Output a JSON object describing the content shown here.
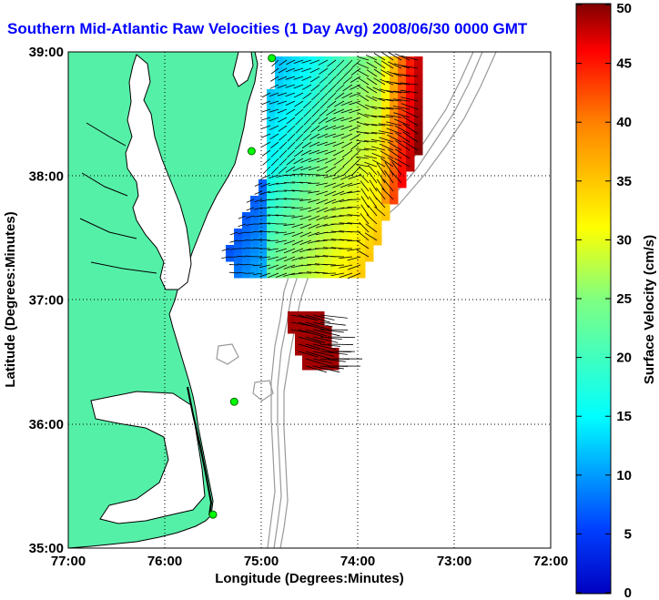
{
  "title": "Southern Mid-Atlantic Raw Velocities (1 Day Avg) 2008/06/30 0000 GMT",
  "map": {
    "xlabel": "Longitude (Degrees:Minutes)",
    "ylabel": "Latitude (Degrees:Minutes)",
    "x_ticks": [
      "77:00",
      "76:00",
      "75:00",
      "74:00",
      "73:00",
      "72:00"
    ],
    "y_ticks": [
      "39:00",
      "38:00",
      "37:00",
      "36:00",
      "35:00"
    ],
    "xlim": [
      -77,
      -72
    ],
    "ylim": [
      35,
      39
    ],
    "grid": true,
    "colors": {
      "land": "#55f0a8",
      "water": "#ffffff",
      "coast": "#000000",
      "bathymetry": "#999999",
      "station": "#00ff00"
    }
  },
  "colorbar": {
    "label": "Surface Velocity (cm/s)",
    "ticks": [
      "0",
      "5",
      "10",
      "15",
      "20",
      "25",
      "30",
      "35",
      "40",
      "45",
      "50"
    ],
    "range": [
      0,
      50
    ],
    "colormap": "jet"
  },
  "stations": [
    {
      "lon": -74.89,
      "lat": 38.95
    },
    {
      "lon": -75.1,
      "lat": 38.2
    },
    {
      "lon": -75.28,
      "lat": 36.18
    },
    {
      "lon": -75.5,
      "lat": 35.27
    }
  ],
  "velocity_field": {
    "unit": "cm/s",
    "arrow_color": "#000000"
  }
}
